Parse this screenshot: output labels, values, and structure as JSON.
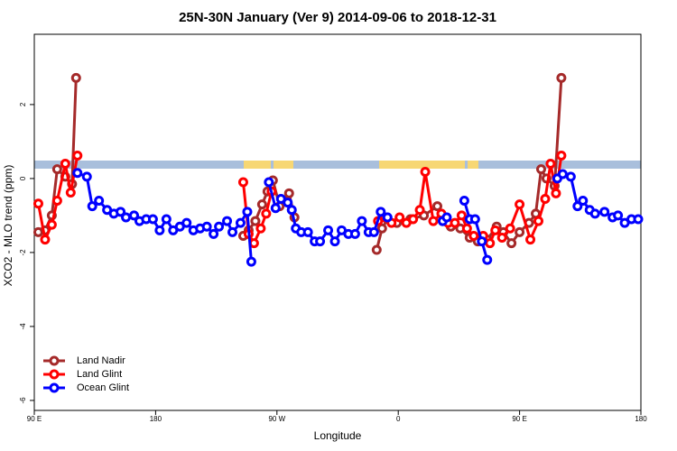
{
  "chart_data": {
    "type": "line",
    "title": "25N-30N January (Ver 9)   2014-09-06 to 2018-12-31",
    "x_label": "Longitude",
    "y_label": "XCO2 - MLO trend (ppm)",
    "xlim": [
      90,
      540
    ],
    "xticks": [
      {
        "value": 90,
        "label": "90 E"
      },
      180,
      {
        "value": 270,
        "label": "90 W"
      },
      {
        "value": 360,
        "label": "0"
      },
      {
        "value": 450,
        "label": "90 E"
      },
      {
        "value": 540,
        "label": "180"
      }
    ],
    "ylim": [
      -6.27,
      3.9
    ],
    "yticks": [
      -6,
      -4,
      -2,
      0,
      2
    ],
    "legend": "bottom-left",
    "series": [
      {
        "name": "Land Nadir",
        "color": "#a52a2a",
        "x": [
          93,
          98,
          103,
          107,
          113,
          118,
          121,
          null,
          245,
          249,
          254,
          259,
          263,
          267,
          272,
          279,
          283,
          null,
          344,
          348,
          352,
          359,
          369,
          379,
          389,
          393,
          399,
          406,
          413,
          419,
          426,
          433,
          438,
          444,
          450,
          457,
          462,
          466,
          470,
          476,
          481
        ],
        "values": [
          -1.45,
          -1.4,
          -1.0,
          0.25,
          0.05,
          -0.15,
          2.72,
          null,
          -1.55,
          -1.4,
          -1.15,
          -0.7,
          -0.35,
          -0.05,
          -0.75,
          -0.4,
          -1.05,
          null,
          -1.93,
          -1.35,
          -1.1,
          -1.2,
          -1.1,
          -1.0,
          -0.75,
          -1.15,
          -1.3,
          -1.35,
          -1.6,
          -1.7,
          -1.65,
          -1.3,
          -1.45,
          -1.75,
          -1.45,
          -1.2,
          -0.95,
          0.25,
          0.0,
          -0.2,
          2.72
        ]
      },
      {
        "name": "Land Glint",
        "color": "#ff0000",
        "x": [
          93,
          98,
          103,
          107,
          113,
          117,
          122,
          null,
          245,
          249,
          253,
          258,
          262,
          266,
          null,
          345,
          350,
          355,
          361,
          366,
          371,
          376,
          380,
          386,
          392,
          397,
          402,
          407,
          411,
          416,
          423,
          428,
          432,
          437,
          443,
          450,
          458,
          464,
          469,
          473,
          477,
          481
        ],
        "values": [
          -0.68,
          -1.65,
          -1.25,
          -0.6,
          0.4,
          -0.38,
          0.62,
          null,
          -0.1,
          -1.5,
          -1.75,
          -1.35,
          -0.95,
          -0.35,
          null,
          -1.15,
          -1.05,
          -1.2,
          -1.05,
          -1.2,
          -1.1,
          -0.85,
          0.18,
          -1.15,
          -0.95,
          -1.2,
          -1.2,
          -1.0,
          -1.35,
          -1.55,
          -1.55,
          -1.75,
          -1.4,
          -1.6,
          -1.35,
          -0.7,
          -1.65,
          -1.15,
          -0.55,
          0.4,
          -0.4,
          0.62
        ]
      },
      {
        "name": "Ocean Glint",
        "color": "#0000ff",
        "x": [
          122,
          129,
          133,
          138,
          144,
          149,
          154,
          158,
          164,
          168,
          173,
          178,
          183,
          188,
          193,
          198,
          203,
          208,
          213,
          218,
          223,
          227,
          233,
          237,
          243,
          248,
          251,
          null,
          264,
          269,
          273,
          278,
          281,
          284,
          288,
          293,
          298,
          302,
          308,
          313,
          318,
          323,
          328,
          333,
          338,
          342,
          347,
          352,
          null,
          393,
          396,
          null,
          409,
          413,
          417,
          422,
          426,
          null,
          478,
          482,
          488,
          493,
          497,
          502,
          506,
          513,
          519,
          523,
          528,
          533,
          538
        ],
        "values": [
          0.15,
          0.05,
          -0.75,
          -0.6,
          -0.85,
          -0.95,
          -0.9,
          -1.05,
          -1.0,
          -1.15,
          -1.1,
          -1.1,
          -1.4,
          -1.1,
          -1.4,
          -1.3,
          -1.2,
          -1.4,
          -1.35,
          -1.3,
          -1.5,
          -1.3,
          -1.15,
          -1.45,
          -1.2,
          -0.9,
          -2.25,
          null,
          -0.1,
          -0.8,
          -0.55,
          -0.65,
          -0.85,
          -1.35,
          -1.45,
          -1.45,
          -1.7,
          -1.7,
          -1.4,
          -1.7,
          -1.4,
          -1.5,
          -1.5,
          -1.15,
          -1.45,
          -1.45,
          -0.9,
          -1.05,
          null,
          -1.15,
          -1.05,
          null,
          -0.6,
          -1.1,
          -1.1,
          -1.7,
          -2.2,
          null,
          0.0,
          0.12,
          0.05,
          -0.75,
          -0.6,
          -0.85,
          -0.95,
          -0.9,
          -1.05,
          -1.0,
          -1.2,
          -1.1,
          -1.1
        ]
      }
    ]
  }
}
